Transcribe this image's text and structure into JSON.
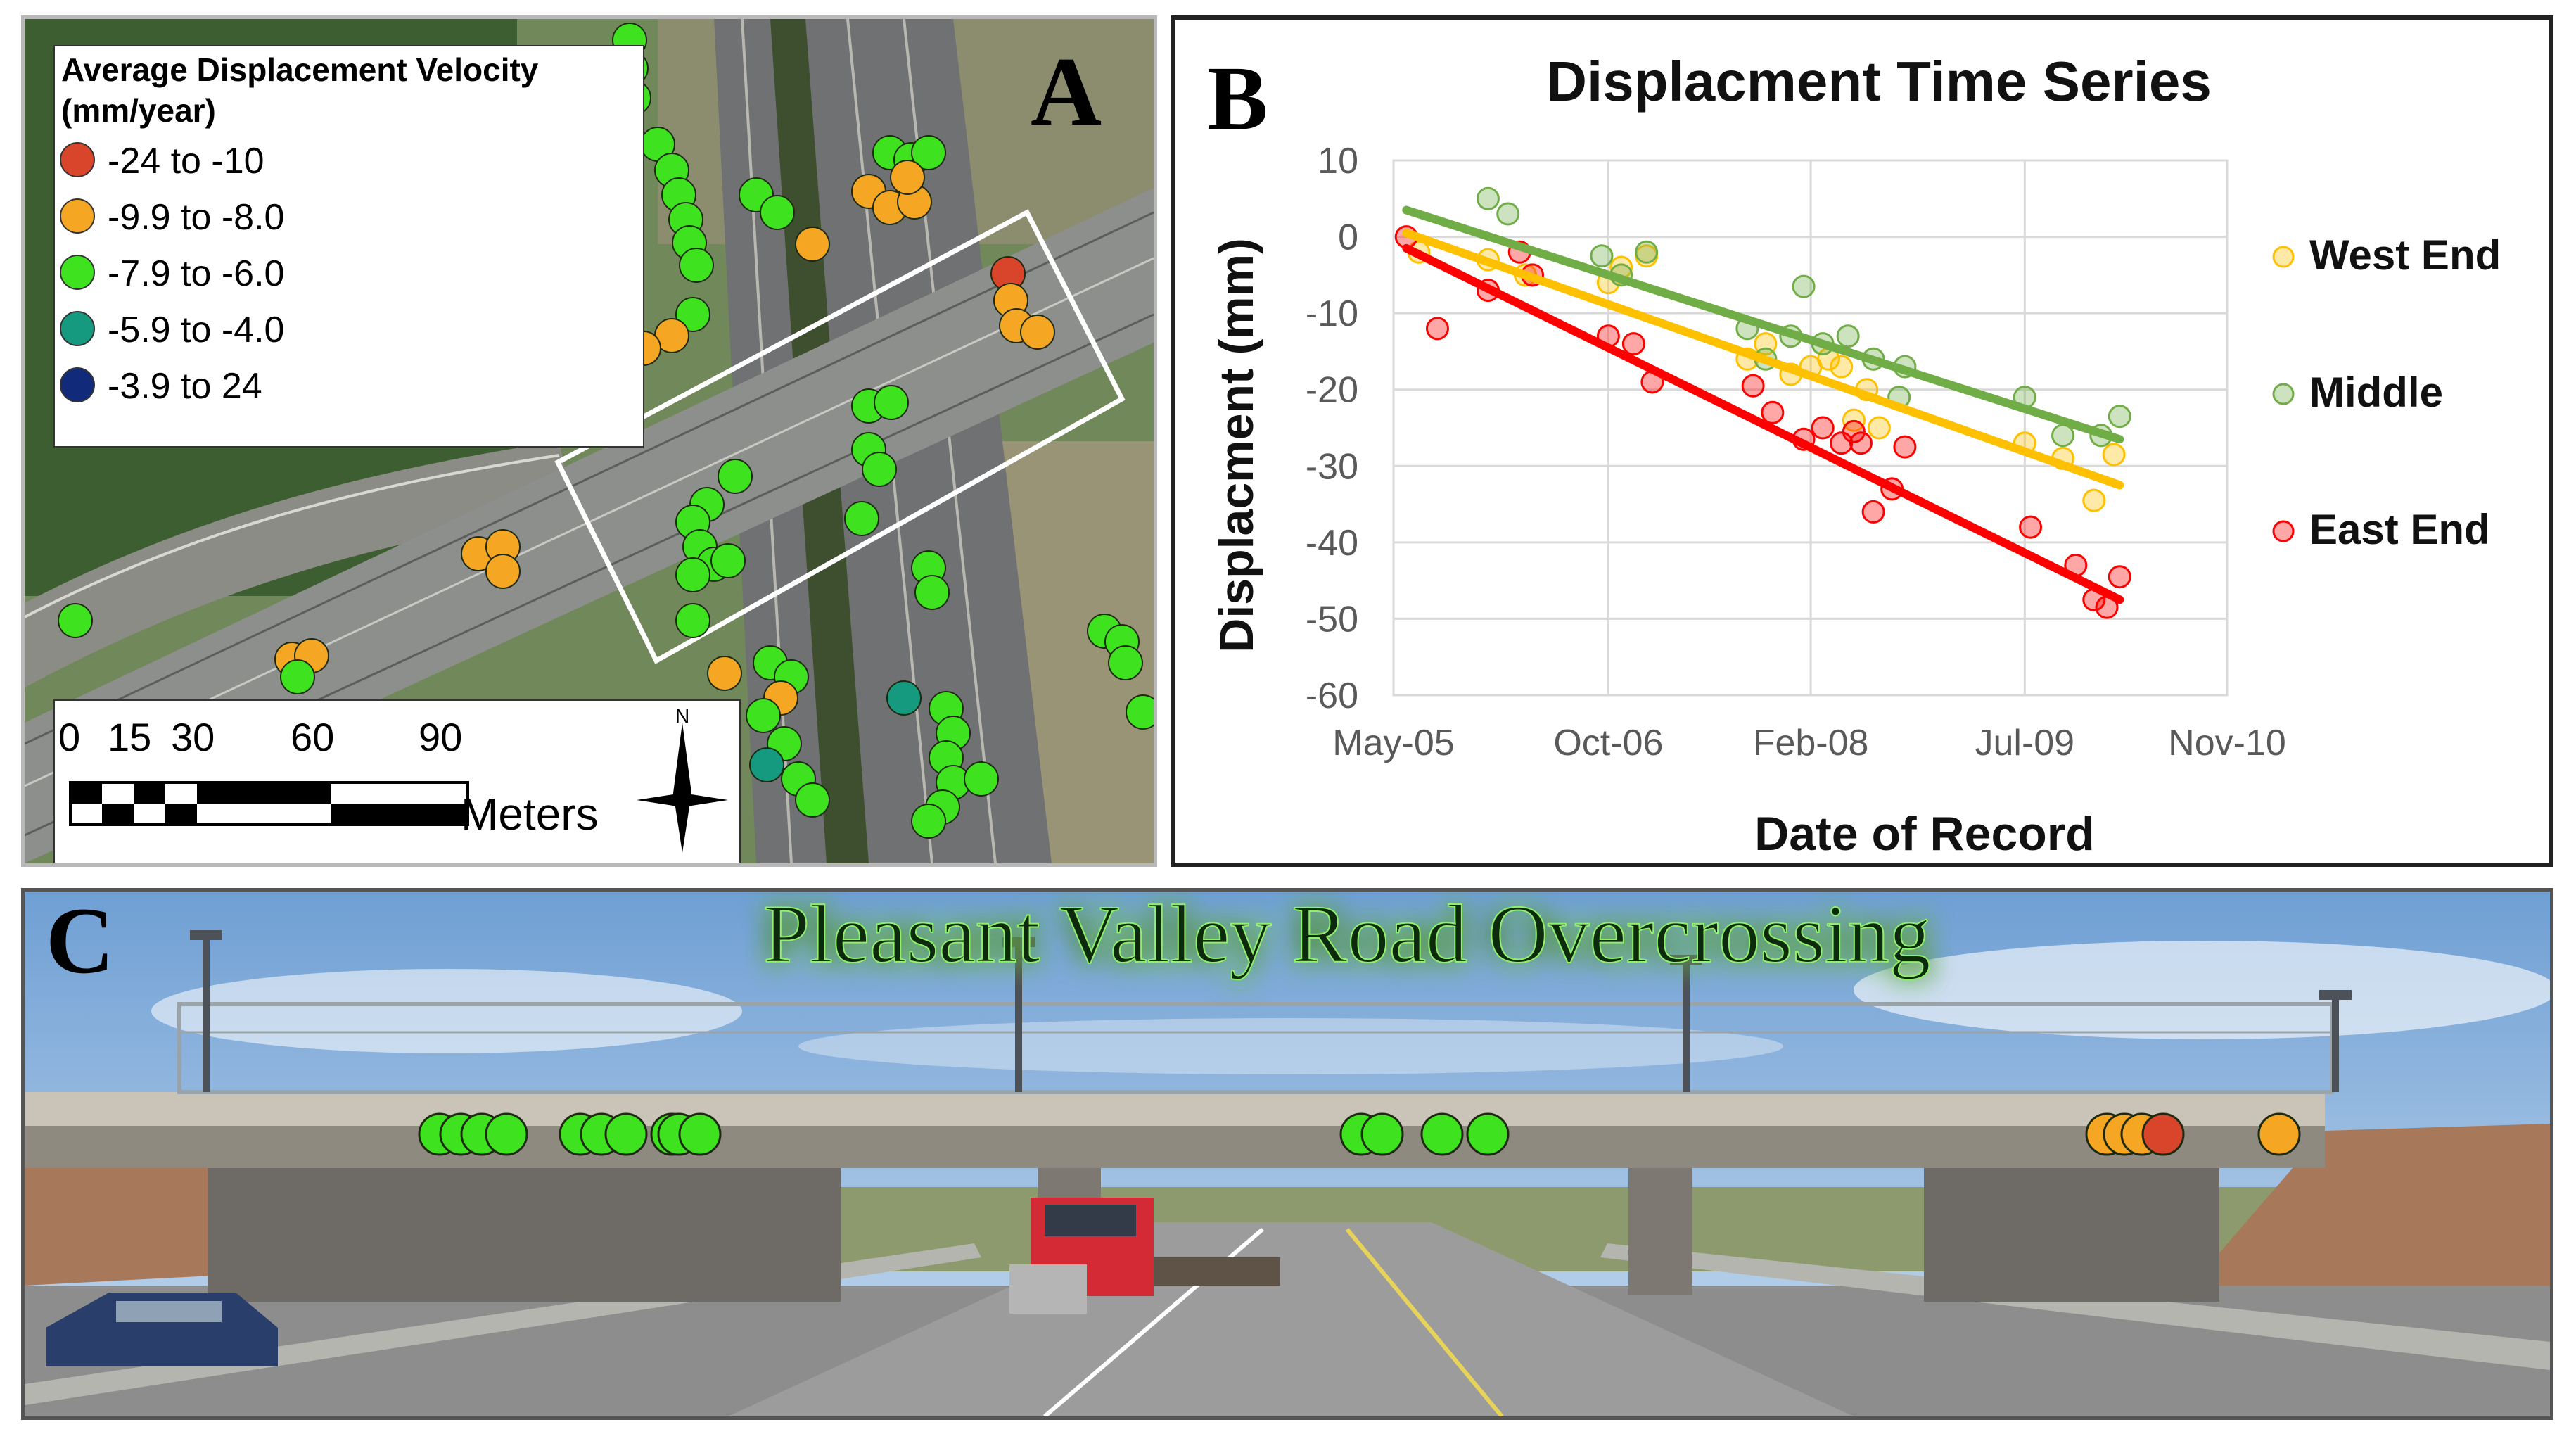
{
  "panel_a": {
    "letter": "A",
    "legend_title_line1": "Average Displacement Velocity",
    "legend_title_line2": "(mm/year)",
    "legend_items": [
      {
        "label": "-24   to  -10",
        "color": "#d9452b"
      },
      {
        "label": "-9.9  to  -8.0",
        "color": "#f5a623"
      },
      {
        "label": "-7.9  to  -6.0",
        "color": "#3ee21e"
      },
      {
        "label": "-5.9  to  -4.0",
        "color": "#159a80"
      },
      {
        "label": "-3.9  to  24",
        "color": "#122a7a"
      }
    ],
    "scale_ticks": [
      "0",
      "15",
      "30",
      "60",
      "90"
    ],
    "scale_unit": "Meters",
    "north_label": "N"
  },
  "panel_b": {
    "letter": "B"
  },
  "panel_c": {
    "letter": "C",
    "title": "Pleasant Valley Road Overcrossing"
  },
  "chart_data": {
    "type": "scatter",
    "title": "Displacment Time Series",
    "xlabel": "Date of Record",
    "ylabel": "Displacment (mm)",
    "x_ticks": [
      "May-05",
      "Oct-06",
      "Feb-08",
      "Jul-09",
      "Nov-10"
    ],
    "x_tick_values": [
      "2005-05-01",
      "2006-10-01",
      "2008-02-01",
      "2009-07-01",
      "2010-11-01"
    ],
    "ylim": [
      -60,
      10
    ],
    "y_ticks": [
      10,
      0,
      -10,
      -20,
      -30,
      -40,
      -50,
      -60
    ],
    "grid": true,
    "legend_position": "right",
    "series": [
      {
        "name": "West End",
        "color": "#ffc000",
        "trend": [
          [
            "2005-06-01",
            0.5
          ],
          [
            "2010-02-15",
            -32.5
          ]
        ],
        "points": [
          [
            "2005-07-01",
            -2
          ],
          [
            "2005-12-15",
            -3
          ],
          [
            "2006-03-15",
            -5
          ],
          [
            "2006-10-01",
            -6
          ],
          [
            "2006-11-01",
            -4
          ],
          [
            "2007-01-01",
            -2.5
          ],
          [
            "2007-09-01",
            -16
          ],
          [
            "2007-10-15",
            -14
          ],
          [
            "2007-12-15",
            -18
          ],
          [
            "2008-02-01",
            -17
          ],
          [
            "2008-03-15",
            -16
          ],
          [
            "2008-04-15",
            -17
          ],
          [
            "2008-05-15",
            -24
          ],
          [
            "2008-06-15",
            -20
          ],
          [
            "2008-07-15",
            -25
          ],
          [
            "2009-07-01",
            -27
          ],
          [
            "2009-10-01",
            -29
          ],
          [
            "2009-12-15",
            -34.5
          ],
          [
            "2010-02-01",
            -28.5
          ]
        ]
      },
      {
        "name": "Middle",
        "color": "#70ad47",
        "trend": [
          [
            "2005-06-01",
            3.5
          ],
          [
            "2010-02-15",
            -26.5
          ]
        ],
        "points": [
          [
            "2005-12-15",
            5
          ],
          [
            "2006-02-01",
            3
          ],
          [
            "2006-09-15",
            -2.5
          ],
          [
            "2006-11-01",
            -5
          ],
          [
            "2007-01-01",
            -2
          ],
          [
            "2007-09-01",
            -12
          ],
          [
            "2007-10-15",
            -16
          ],
          [
            "2007-12-15",
            -13
          ],
          [
            "2008-01-15",
            -6.5
          ],
          [
            "2008-03-01",
            -14
          ],
          [
            "2008-05-01",
            -13
          ],
          [
            "2008-07-01",
            -16
          ],
          [
            "2008-09-15",
            -17
          ],
          [
            "2008-09-01",
            -21
          ],
          [
            "2009-07-01",
            -21
          ],
          [
            "2009-10-01",
            -26
          ],
          [
            "2010-01-01",
            -26
          ],
          [
            "2010-02-15",
            -23.5
          ]
        ]
      },
      {
        "name": "East End",
        "color": "#ff0000",
        "trend": [
          [
            "2005-06-01",
            -1.5
          ],
          [
            "2010-02-15",
            -47.5
          ]
        ],
        "points": [
          [
            "2005-06-01",
            0
          ],
          [
            "2005-08-15",
            -12
          ],
          [
            "2005-12-15",
            -7
          ],
          [
            "2006-03-01",
            -2
          ],
          [
            "2006-04-01",
            -5
          ],
          [
            "2006-10-01",
            -13
          ],
          [
            "2006-12-01",
            -14
          ],
          [
            "2007-01-15",
            -19
          ],
          [
            "2007-09-15",
            -19.5
          ],
          [
            "2007-11-01",
            -23
          ],
          [
            "2008-01-15",
            -26.5
          ],
          [
            "2008-03-01",
            -25
          ],
          [
            "2008-04-15",
            -27
          ],
          [
            "2008-05-15",
            -25.5
          ],
          [
            "2008-06-01",
            -27
          ],
          [
            "2008-07-01",
            -36
          ],
          [
            "2008-08-15",
            -33
          ],
          [
            "2008-09-15",
            -27.5
          ],
          [
            "2009-07-15",
            -38
          ],
          [
            "2009-11-01",
            -43
          ],
          [
            "2009-12-15",
            -47.5
          ],
          [
            "2010-01-15",
            -48.5
          ],
          [
            "2010-02-15",
            -44.5
          ]
        ]
      }
    ]
  }
}
